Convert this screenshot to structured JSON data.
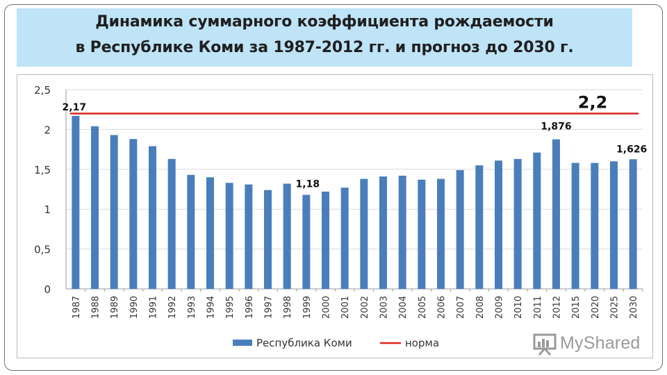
{
  "title": {
    "line1": "Динамика суммарного коэффициента рождаемости",
    "line2": "в Республике Коми за 1987-2012 гг. и прогноз до 2030 г."
  },
  "logo": {
    "text": "MyShared",
    "icon": "presentation-board-icon"
  },
  "colors": {
    "bars": "#4a7ebb",
    "norma_line": "#d9261c",
    "title_band": "#bfe3f7",
    "grid": "#d9d9d9"
  },
  "chart_data": {
    "type": "bar",
    "categories": [
      "1987",
      "1988",
      "1989",
      "1990",
      "1991",
      "1992",
      "1993",
      "1994",
      "1995",
      "1996",
      "1997",
      "1998",
      "1999",
      "2000",
      "2001",
      "2002",
      "2003",
      "2004",
      "2005",
      "2006",
      "2007",
      "2008",
      "2009",
      "2010",
      "2011",
      "2012",
      "2015",
      "2020",
      "2025",
      "2030"
    ],
    "series": [
      {
        "name": "Республика Коми",
        "type": "bar",
        "values": [
          2.17,
          2.04,
          1.93,
          1.88,
          1.79,
          1.63,
          1.43,
          1.4,
          1.33,
          1.31,
          1.24,
          1.32,
          1.18,
          1.22,
          1.27,
          1.38,
          1.41,
          1.42,
          1.37,
          1.38,
          1.49,
          1.55,
          1.61,
          1.63,
          1.71,
          1.876,
          1.58,
          1.58,
          1.6,
          1.626
        ]
      },
      {
        "name": "норма",
        "type": "line",
        "value": 2.2
      }
    ],
    "data_labels": [
      {
        "category": "1987",
        "text": "2,17"
      },
      {
        "category": "1999",
        "text": "1,18"
      },
      {
        "category": "2012",
        "text": "1,876"
      },
      {
        "category": "2030",
        "text": "1,626"
      }
    ],
    "norma_label": "2,2",
    "yticks": [
      "0",
      "0,5",
      "1",
      "1,5",
      "2",
      "2,5"
    ],
    "ylim": [
      0,
      2.5
    ],
    "grid": true,
    "legend_position": "bottom"
  }
}
